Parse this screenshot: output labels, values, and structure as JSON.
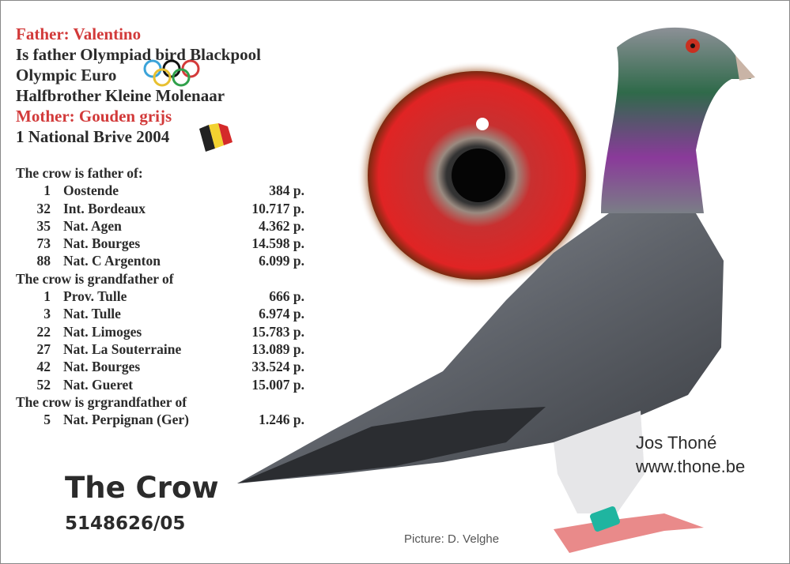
{
  "header": {
    "father": "Father: Valentino",
    "line2": "Is father Olympiad bird Blackpool",
    "line3": "Olympic Euro",
    "line4": "Halfbrother Kleine Molenaar",
    "mother": "Mother: Gouden grijs",
    "line6": "1 National Brive 2004"
  },
  "results": {
    "father_heading": "The crow is father of:",
    "father_rows": [
      {
        "place": "1",
        "race": "Oostende",
        "birds": "384 p."
      },
      {
        "place": "32",
        "race": "Int. Bordeaux",
        "birds": "10.717 p."
      },
      {
        "place": "35",
        "race": "Nat. Agen",
        "birds": "4.362 p."
      },
      {
        "place": "73",
        "race": "Nat. Bourges",
        "birds": "14.598 p."
      },
      {
        "place": "88",
        "race": "Nat. C Argenton",
        "birds": "6.099 p."
      }
    ],
    "grandfather_heading": "The crow is grandfather of",
    "grandfather_rows": [
      {
        "place": "1",
        "race": "Prov. Tulle",
        "birds": "666 p."
      },
      {
        "place": "3",
        "race": "Nat. Tulle",
        "birds": "6.974 p."
      },
      {
        "place": "22",
        "race": "Nat. Limoges",
        "birds": "15.783 p."
      },
      {
        "place": "27",
        "race": "Nat. La Souterraine",
        "birds": "13.089 p."
      },
      {
        "place": "42",
        "race": "Nat. Bourges",
        "birds": "33.524 p."
      },
      {
        "place": "52",
        "race": "Nat. Gueret",
        "birds": "15.007 p."
      }
    ],
    "grgrandfather_heading": "The crow is grgrandfather of",
    "grgrandfather_rows": [
      {
        "place": "5",
        "race": "Nat. Perpignan (Ger)",
        "birds": "1.246 p."
      }
    ]
  },
  "bird": {
    "name": "The Crow",
    "ring": "5148626/05"
  },
  "breeder": {
    "name": "Jos Thoné",
    "website": "www.thone.be"
  },
  "credit": "Picture: D. Velghe",
  "icons": {
    "rings": "olympic-rings-icon",
    "flag": "belgian-flag-icon"
  },
  "colors": {
    "accent_red": "#d23a3a",
    "text": "#2b2b2b",
    "iris": "#d42020"
  }
}
